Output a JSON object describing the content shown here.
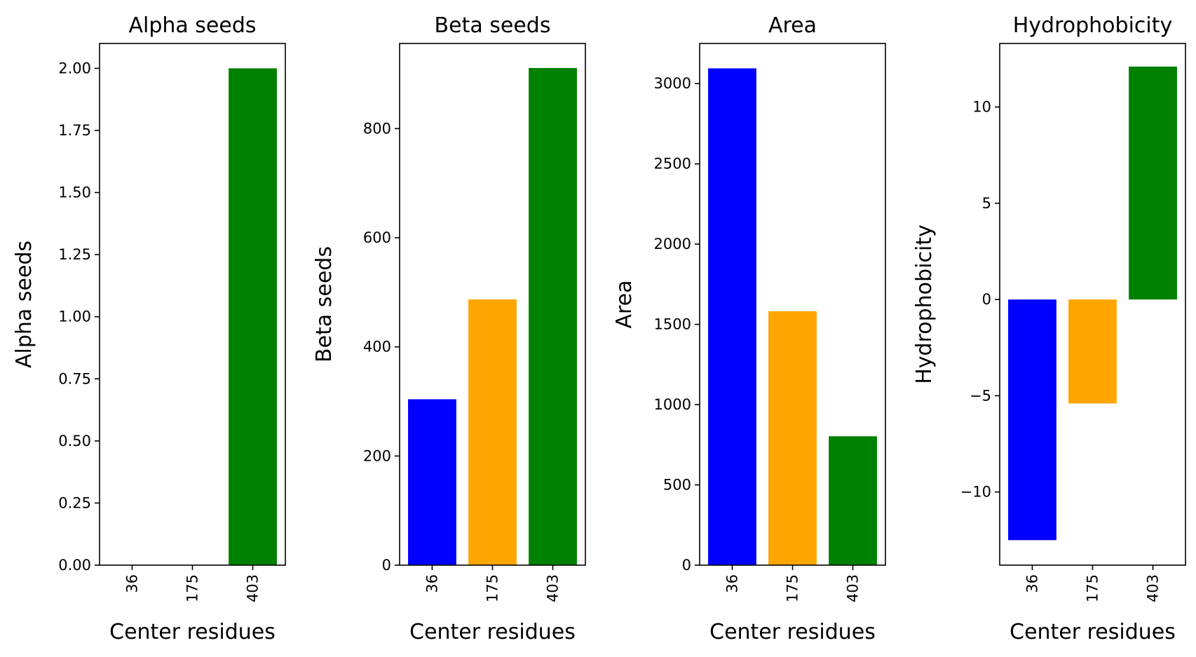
{
  "figure": {
    "bar_colors": [
      "#0000ff",
      "#ffa500",
      "#008000"
    ]
  },
  "chart_data": [
    {
      "type": "bar",
      "title": "Alpha seeds",
      "xlabel": "Center residues",
      "ylabel": "Alpha seeds",
      "categories": [
        "36",
        "175",
        "403"
      ],
      "values": [
        0,
        0,
        2
      ],
      "ylim": [
        0,
        2.1
      ],
      "yticks": [
        0,
        0.25,
        0.5,
        0.75,
        1,
        1.25,
        1.5,
        1.75,
        2
      ],
      "ytick_labels": [
        "0.00",
        "0.25",
        "0.50",
        "0.75",
        "1.00",
        "1.25",
        "1.50",
        "1.75",
        "2.00"
      ],
      "grid": false
    },
    {
      "type": "bar",
      "title": "Beta seeds",
      "xlabel": "Center residues",
      "ylabel": "Beta seeds",
      "categories": [
        "36",
        "175",
        "403"
      ],
      "values": [
        304,
        487,
        911
      ],
      "ylim": [
        0,
        956
      ],
      "yticks": [
        0,
        200,
        400,
        600,
        800
      ],
      "ytick_labels": [
        "0",
        "200",
        "400",
        "600",
        "800"
      ],
      "grid": false
    },
    {
      "type": "bar",
      "title": "Area",
      "xlabel": "Center residues",
      "ylabel": "Area",
      "categories": [
        "36",
        "175",
        "403"
      ],
      "values": [
        3095,
        1582,
        803
      ],
      "ylim": [
        0,
        3250
      ],
      "yticks": [
        0,
        500,
        1000,
        1500,
        2000,
        2500,
        3000
      ],
      "ytick_labels": [
        "0",
        "500",
        "1000",
        "1500",
        "2000",
        "2500",
        "3000"
      ],
      "grid": false
    },
    {
      "type": "bar",
      "title": "Hydrophobicity",
      "xlabel": "Center residues",
      "ylabel": "Hydrophobicity",
      "categories": [
        "36",
        "175",
        "403"
      ],
      "values": [
        -12.5,
        -5.4,
        12.1
      ],
      "ylim": [
        -13.8,
        13.3
      ],
      "yticks": [
        -10,
        -5,
        0,
        5,
        10
      ],
      "ytick_labels": [
        "−10",
        "−5",
        "0",
        "5",
        "10"
      ],
      "grid": false
    }
  ]
}
